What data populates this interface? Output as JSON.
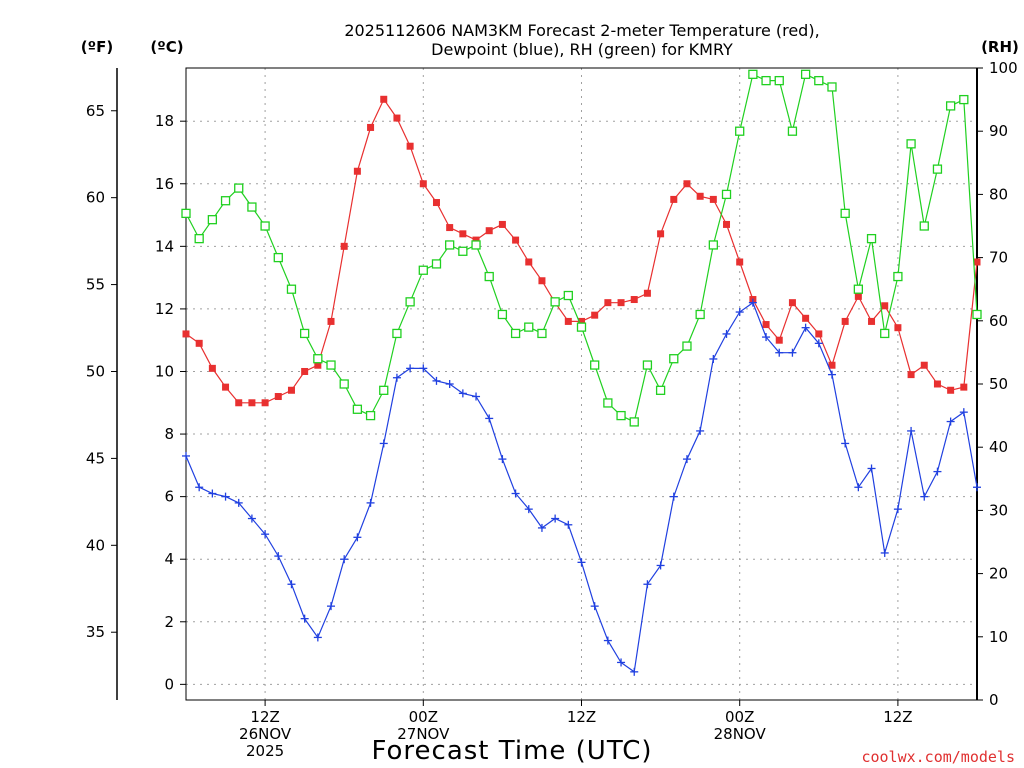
{
  "chart_data": {
    "type": "line",
    "title_line1": "2025112606 NAM3KM Forecast 2-meter Temperature (red),",
    "title_line2": "Dewpoint (blue), RH (green) for KMRY",
    "xlabel": "Forecast Time (UTC)",
    "credit": "coolwx.com/models",
    "unit_f": "(ºF)",
    "unit_c": "(ºC)",
    "unit_rh": "(RH)",
    "x_range_hours": [
      0,
      60
    ],
    "x_ticks": [
      {
        "hour": 6,
        "lines": [
          "12Z",
          "26NOV",
          "2025"
        ]
      },
      {
        "hour": 18,
        "lines": [
          "00Z",
          "27NOV"
        ]
      },
      {
        "hour": 30,
        "lines": [
          "12Z"
        ]
      },
      {
        "hour": 42,
        "lines": [
          "00Z",
          "28NOV"
        ]
      },
      {
        "hour": 54,
        "lines": [
          "12Z"
        ]
      }
    ],
    "celsius_range": [
      -0.5,
      19.7
    ],
    "celsius_ticks": [
      0,
      2,
      4,
      6,
      8,
      10,
      12,
      14,
      16,
      18
    ],
    "fahrenheit_ticks": [
      35,
      40,
      45,
      50,
      55,
      60,
      65
    ],
    "rh_range": [
      0,
      100
    ],
    "rh_ticks": [
      0,
      10,
      20,
      30,
      40,
      50,
      60,
      70,
      80,
      90,
      100
    ],
    "colors": {
      "temperature": "#e83030",
      "dewpoint": "#2040e0",
      "rh": "#20d020",
      "grid": "#a0a0a0",
      "axis": "#000000"
    },
    "series": [
      {
        "name": "Temperature",
        "unit": "C",
        "values": [
          11.2,
          10.9,
          10.1,
          9.5,
          9.0,
          9.0,
          9.0,
          9.2,
          9.4,
          10.0,
          10.2,
          11.6,
          14.0,
          16.4,
          17.8,
          18.7,
          18.1,
          17.2,
          16.0,
          15.4,
          14.6,
          14.4,
          14.2,
          14.5,
          14.7,
          14.2,
          13.5,
          12.9,
          12.2,
          11.6,
          11.6,
          11.8,
          12.2,
          12.2,
          12.3,
          12.5,
          14.4,
          15.5,
          16.0,
          15.6,
          15.5,
          14.7,
          13.5,
          12.3,
          11.5,
          11.0,
          12.2,
          11.7,
          11.2,
          10.2,
          11.6,
          12.4,
          11.6,
          12.1,
          11.4,
          9.9,
          10.2,
          9.6,
          9.4,
          9.5,
          13.5
        ]
      },
      {
        "name": "Dewpoint",
        "unit": "C",
        "values": [
          7.3,
          6.3,
          6.1,
          6.0,
          5.8,
          5.3,
          4.8,
          4.1,
          3.2,
          2.1,
          1.5,
          2.5,
          4.0,
          4.7,
          5.8,
          7.7,
          9.8,
          10.1,
          10.1,
          9.7,
          9.6,
          9.3,
          9.2,
          8.5,
          7.2,
          6.1,
          5.6,
          5.0,
          5.3,
          5.1,
          3.9,
          2.5,
          1.4,
          0.7,
          0.4,
          3.2,
          3.8,
          6.0,
          7.2,
          8.1,
          10.4,
          11.2,
          11.9,
          12.2,
          11.1,
          10.6,
          10.6,
          11.4,
          10.9,
          9.9,
          7.7,
          6.3,
          6.9,
          4.2,
          5.6,
          8.1,
          6.0,
          6.8,
          8.4,
          8.7,
          6.3
        ]
      },
      {
        "name": "RH",
        "unit": "%",
        "values": [
          77,
          73,
          76,
          79,
          81,
          78,
          75,
          70,
          65,
          58,
          54,
          53,
          50,
          46,
          45,
          49,
          58,
          63,
          68,
          69,
          72,
          71,
          72,
          67,
          61,
          58,
          59,
          58,
          63,
          64,
          59,
          53,
          47,
          45,
          44,
          53,
          49,
          54,
          56,
          61,
          72,
          80,
          90,
          99,
          98,
          98,
          90,
          99,
          98,
          97,
          77,
          65,
          73,
          58,
          67,
          88,
          75,
          84,
          94,
          95,
          61
        ]
      }
    ]
  }
}
